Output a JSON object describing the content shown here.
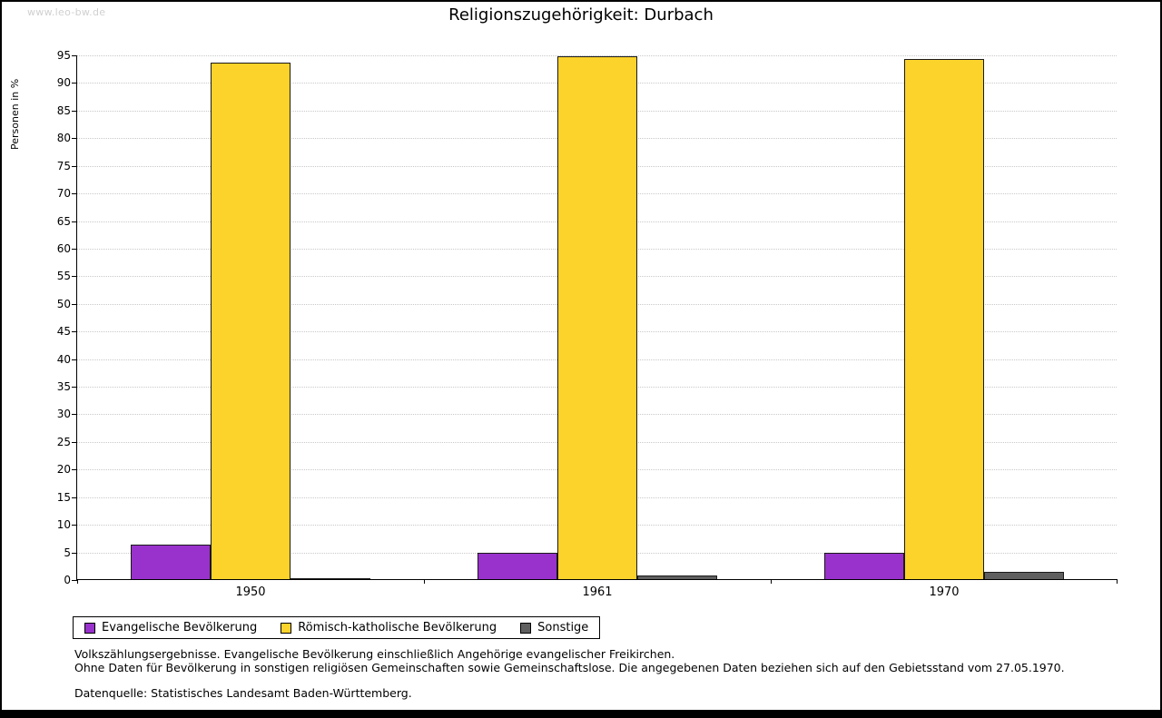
{
  "page": {
    "watermark": "www.leo-bw.de",
    "title": "Religionszugehörigkeit: Durbach"
  },
  "chart_data": {
    "type": "bar",
    "title": "Religionszugehörigkeit: Durbach",
    "xlabel": "",
    "ylabel": "Personen in %",
    "ylim": [
      0,
      95
    ],
    "ytick_step": 5,
    "grid": true,
    "legend_position": "bottom",
    "categories": [
      "1950",
      "1961",
      "1970"
    ],
    "series": [
      {
        "name": "Evangelische Bevölkerung",
        "color": "#9932cc",
        "values": [
          6.3,
          4.8,
          4.7
        ]
      },
      {
        "name": "Römisch-katholische Bevölkerung",
        "color": "#fcd32b",
        "values": [
          93.5,
          94.7,
          94.2
        ]
      },
      {
        "name": "Sonstige",
        "color": "#5f5f5f",
        "values": [
          0.2,
          0.6,
          1.3
        ]
      }
    ]
  },
  "footer": {
    "line1": "Volkszählungsergebnisse. Evangelische Bevölkerung einschließlich Angehörige evangelischer Freikirchen.",
    "line2": "Ohne Daten für Bevölkerung in sonstigen religiösen Gemeinschaften sowie Gemeinschaftslose. Die angegebenen Daten beziehen sich auf den Gebietsstand vom 27.05.1970.",
    "source": "Datenquelle: Statistisches Landesamt Baden-Württemberg."
  }
}
